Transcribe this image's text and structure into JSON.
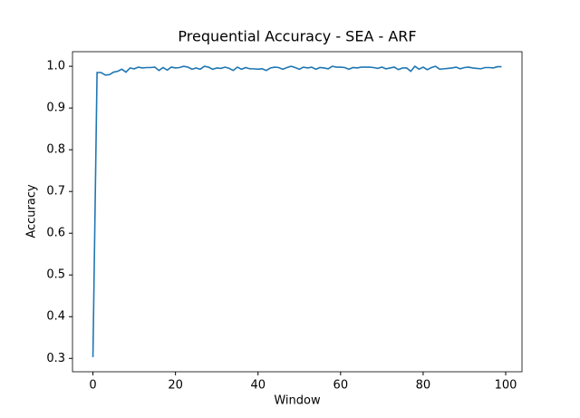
{
  "chart_data": {
    "type": "line",
    "title": "Prequential Accuracy - SEA - ARF",
    "x_label": "Window",
    "y_label": "Accuracy",
    "x": [
      0,
      1,
      2,
      3,
      4,
      5,
      6,
      7,
      8,
      9,
      10,
      11,
      12,
      13,
      14,
      15,
      16,
      17,
      18,
      19,
      20,
      21,
      22,
      23,
      24,
      25,
      26,
      27,
      28,
      29,
      30,
      31,
      32,
      33,
      34,
      35,
      36,
      37,
      38,
      39,
      40,
      41,
      42,
      43,
      44,
      45,
      46,
      47,
      48,
      49,
      50,
      51,
      52,
      53,
      54,
      55,
      56,
      57,
      58,
      59,
      60,
      61,
      62,
      63,
      64,
      65,
      66,
      67,
      68,
      69,
      70,
      71,
      72,
      73,
      74,
      75,
      76,
      77,
      78,
      79,
      80,
      81,
      82,
      83,
      84,
      85,
      86,
      87,
      88,
      89,
      90,
      91,
      92,
      93,
      94,
      95,
      96,
      97,
      98,
      99
    ],
    "values": [
      0.303,
      0.985,
      0.985,
      0.979,
      0.98,
      0.986,
      0.988,
      0.993,
      0.986,
      0.996,
      0.994,
      0.998,
      0.996,
      0.997,
      0.997,
      0.998,
      0.99,
      0.997,
      0.991,
      0.998,
      0.996,
      0.997,
      1.0,
      0.998,
      0.993,
      0.996,
      0.993,
      1.0,
      0.998,
      0.993,
      0.996,
      0.995,
      0.998,
      0.995,
      0.99,
      0.998,
      0.993,
      0.997,
      0.994,
      0.994,
      0.993,
      0.994,
      0.99,
      0.996,
      0.998,
      0.997,
      0.993,
      0.997,
      1.0,
      0.997,
      0.993,
      0.998,
      0.996,
      0.998,
      0.993,
      0.997,
      0.996,
      0.994,
      1.0,
      0.998,
      0.998,
      0.997,
      0.993,
      0.997,
      0.996,
      0.998,
      0.998,
      0.998,
      0.997,
      0.995,
      0.998,
      0.994,
      0.996,
      0.998,
      0.992,
      0.996,
      0.996,
      0.988,
      1.0,
      0.993,
      0.998,
      0.992,
      0.997,
      1.0,
      0.993,
      0.994,
      0.995,
      0.996,
      0.998,
      0.994,
      0.997,
      0.998,
      0.996,
      0.995,
      0.994,
      0.997,
      0.997,
      0.996,
      0.999,
      0.999
    ],
    "color": "#1f77b4",
    "xlim": [
      -4.95,
      103.95
    ],
    "xticks": [
      0,
      20,
      40,
      60,
      80,
      100
    ],
    "ylim": [
      0.268,
      1.035
    ],
    "yticks": [
      0.3,
      0.4,
      0.5,
      0.6,
      0.7,
      0.8,
      0.9,
      {
        "value": 1,
        "label": "1.0"
      }
    ]
  }
}
